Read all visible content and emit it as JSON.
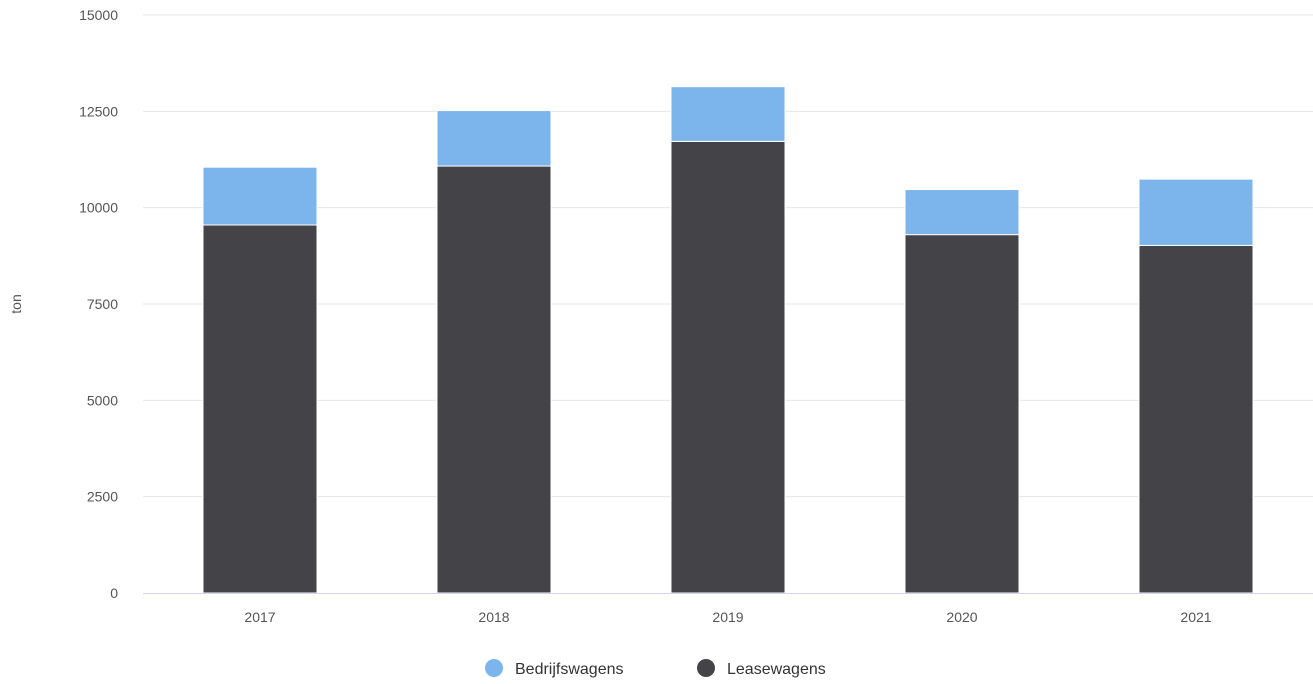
{
  "chart_data": {
    "type": "bar",
    "stacked": true,
    "categories": [
      "2017",
      "2018",
      "2019",
      "2020",
      "2021"
    ],
    "series": [
      {
        "name": "Leasewagens",
        "color": "#434348",
        "values": [
          9550,
          11080,
          11720,
          9300,
          9020
        ]
      },
      {
        "name": "Bedrijfswagens",
        "color": "#7cb5ec",
        "values": [
          1500,
          1440,
          1420,
          1170,
          1720
        ]
      }
    ],
    "title": "",
    "xlabel": "",
    "ylabel": "ton",
    "ylim": [
      0,
      15000
    ],
    "yticks": [
      0,
      2500,
      5000,
      7500,
      10000,
      12500,
      15000
    ],
    "grid": true,
    "legend": {
      "position": "bottom",
      "order": [
        "Bedrijfswagens",
        "Leasewagens"
      ]
    }
  }
}
